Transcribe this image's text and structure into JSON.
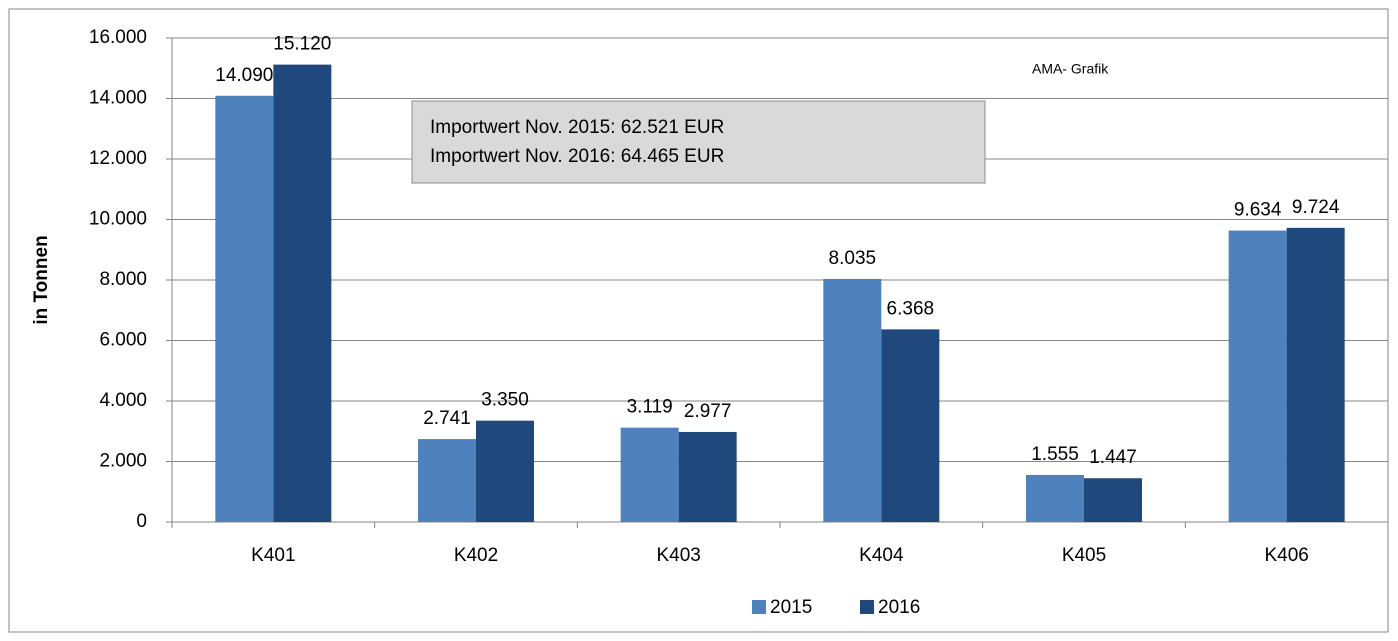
{
  "chart_data": {
    "type": "bar",
    "y_axis_label": "in Tonnen",
    "categories": [
      "K401",
      "K402",
      "K403",
      "K404",
      "K405",
      "K406"
    ],
    "series": [
      {
        "name": "2015",
        "color": "#4f81bd",
        "values": [
          14090,
          2741,
          3119,
          8035,
          1555,
          9634
        ],
        "value_labels": [
          "14.090",
          "2.741",
          "3.119",
          "8.035",
          "1.555",
          "9.634"
        ]
      },
      {
        "name": "2016",
        "color": "#1f497d",
        "values": [
          15120,
          3350,
          2977,
          6368,
          1447,
          9724
        ],
        "value_labels": [
          "15.120",
          "3.350",
          "2.977",
          "6.368",
          "1.447",
          "9.724"
        ]
      }
    ],
    "ylim": [
      0,
      16000
    ],
    "yticks": [
      0,
      {
        "value": 2000,
        "label": "2.000"
      },
      {
        "value": 4000,
        "label": "4.000"
      },
      {
        "value": 6000,
        "label": "6.000"
      },
      {
        "value": 8000,
        "label": "8.000"
      },
      {
        "value": 10000,
        "label": "10.000"
      },
      {
        "value": 12000,
        "label": "12.000"
      },
      {
        "value": 14000,
        "label": "14.000"
      },
      {
        "value": 16000,
        "label": "16.000"
      }
    ],
    "grid": true,
    "legend": "bottom",
    "annotations": [
      "Importwert Nov. 2015: 62.521 EUR",
      "Importwert Nov. 2016: 64.465 EUR",
      "AMA- Grafik"
    ]
  }
}
